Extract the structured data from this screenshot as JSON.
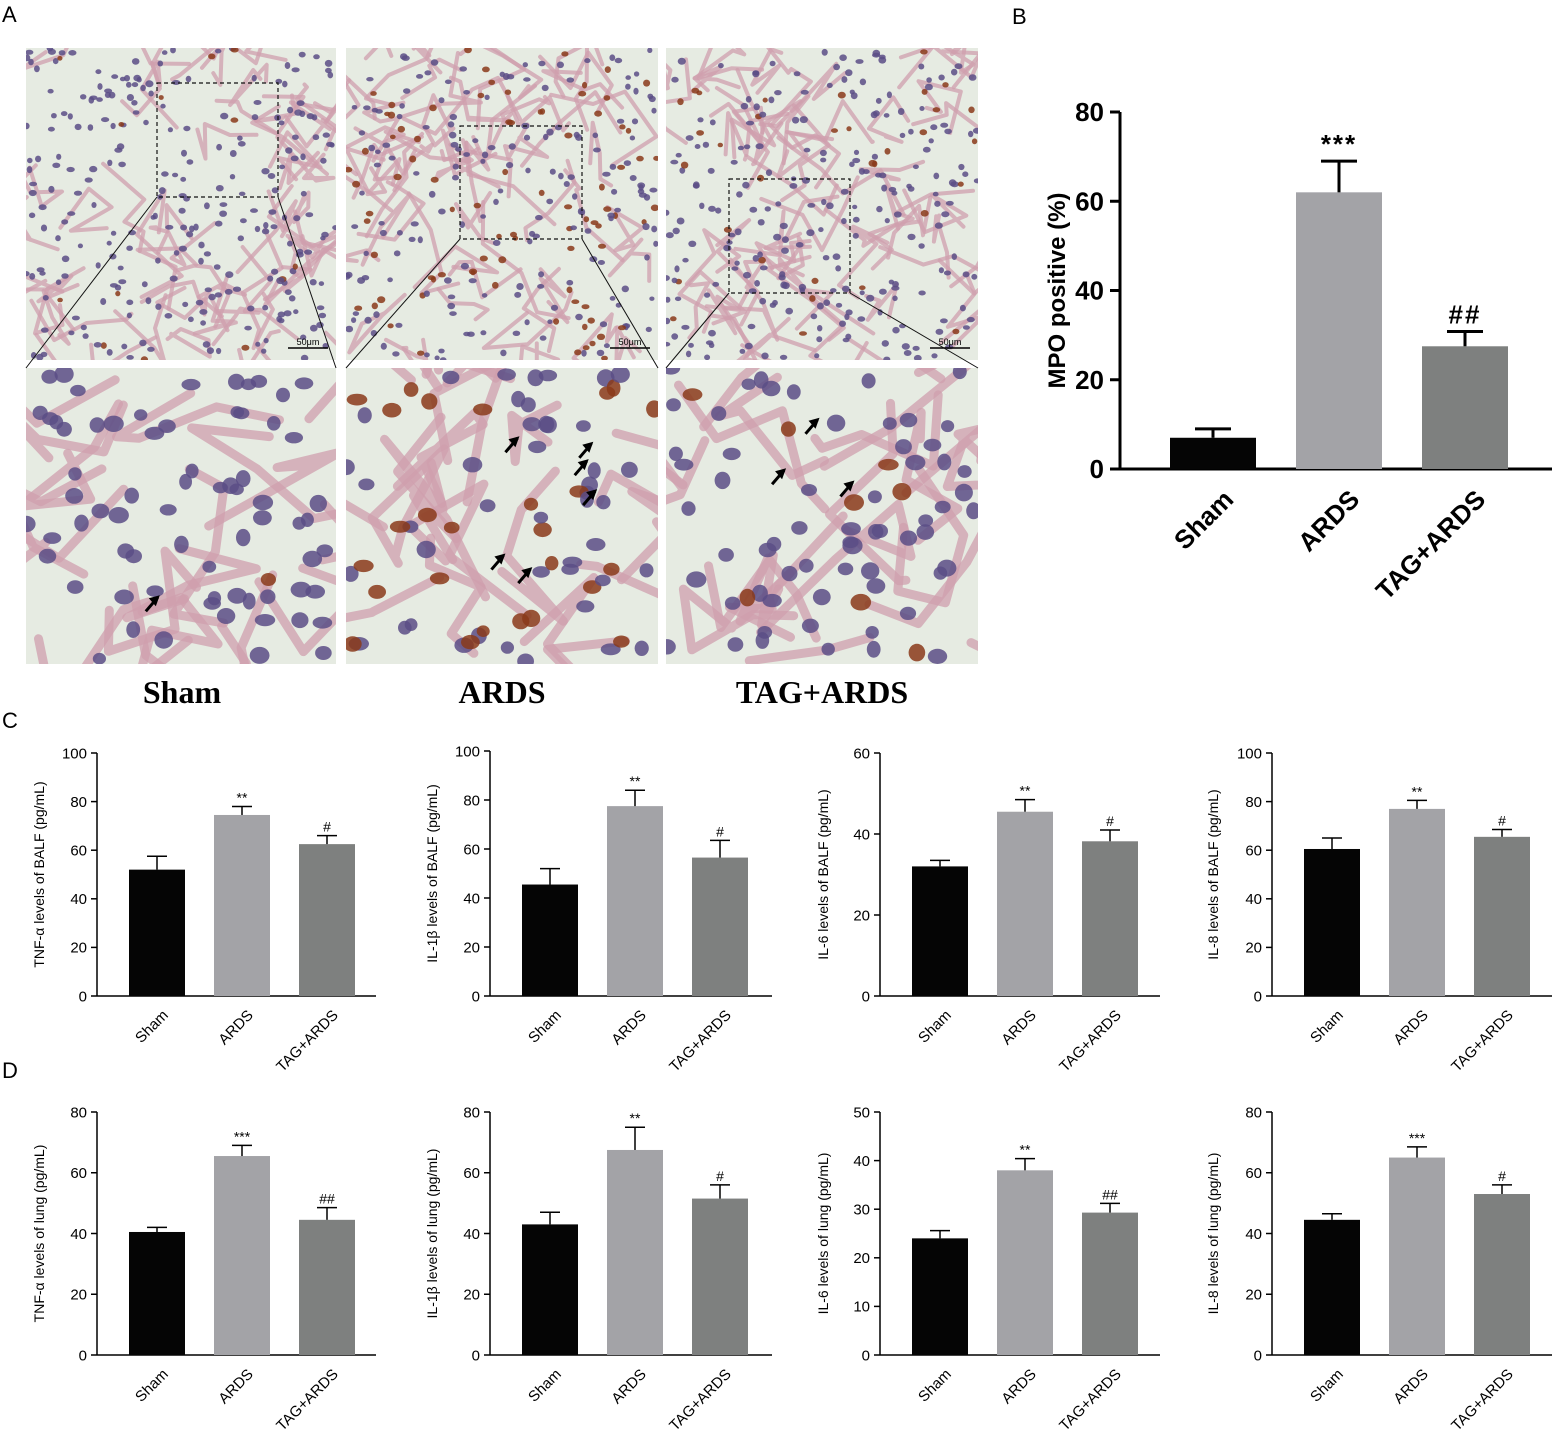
{
  "panel_letters": {
    "A": "A",
    "B": "B",
    "C": "C",
    "D": "D"
  },
  "micrographs": {
    "scale_bar": "50μm",
    "groups": [
      "Sham",
      "ARDS",
      "TAG+ARDS"
    ],
    "arrow_counts": [
      1,
      6,
      3
    ]
  },
  "colors": {
    "sham": "#050505",
    "ards": "#a3a3a7",
    "tag_ards": "#7e807f",
    "tissue_bg": "#e6ebe2",
    "tissue_pink": "#cf9fae",
    "nucleus": "#5b4d86",
    "mpo_positive": "#8a3a1a"
  },
  "chart_data": [
    {
      "id": "B",
      "type": "bar",
      "categories": [
        "Sham",
        "ARDS",
        "TAG+ARDS"
      ],
      "values": [
        7,
        62,
        27.5
      ],
      "errors": [
        2,
        7,
        3.3
      ],
      "annotations": [
        "",
        "***",
        "##"
      ],
      "ylabel": "MPO positive (%)",
      "ylim": [
        0,
        80
      ],
      "ticks": [
        0,
        20,
        40,
        60,
        80
      ]
    },
    {
      "id": "C1",
      "type": "bar",
      "categories": [
        "Sham",
        "ARDS",
        "TAG+ARDS"
      ],
      "values": [
        52,
        74.5,
        62.5
      ],
      "errors": [
        5.5,
        3.5,
        3.5
      ],
      "annotations": [
        "",
        "**",
        "#"
      ],
      "ylabel": "TNF-α levels of BALF (pg/mL)",
      "ylim": [
        0,
        100
      ],
      "ticks": [
        0,
        20,
        40,
        60,
        80,
        100
      ]
    },
    {
      "id": "C2",
      "type": "bar",
      "categories": [
        "Sham",
        "ARDS",
        "TAG+ARDS"
      ],
      "values": [
        45.5,
        77.5,
        56.5
      ],
      "errors": [
        6.5,
        6.5,
        7
      ],
      "annotations": [
        "",
        "**",
        "#"
      ],
      "ylabel": "IL-1β levels of BALF (pg/mL)",
      "ylim": [
        0,
        100
      ],
      "ticks": [
        0,
        20,
        40,
        60,
        80,
        100
      ]
    },
    {
      "id": "C3",
      "type": "bar",
      "categories": [
        "Sham",
        "ARDS",
        "TAG+ARDS"
      ],
      "values": [
        32,
        45.5,
        38.2
      ],
      "errors": [
        1.5,
        3,
        2.8
      ],
      "annotations": [
        "",
        "**",
        "#"
      ],
      "ylabel": "IL-6 levels of BALF (pg/mL)",
      "ylim": [
        0,
        60
      ],
      "ticks": [
        0,
        20,
        40,
        60
      ]
    },
    {
      "id": "C4",
      "type": "bar",
      "categories": [
        "Sham",
        "ARDS",
        "TAG+ARDS"
      ],
      "values": [
        60.5,
        77,
        65.5
      ],
      "errors": [
        4.5,
        3.5,
        3
      ],
      "annotations": [
        "",
        "**",
        "#"
      ],
      "ylabel": "IL-8 levels of BALF (pg/mL)",
      "ylim": [
        0,
        100
      ],
      "ticks": [
        0,
        20,
        40,
        60,
        80,
        100
      ]
    },
    {
      "id": "D1",
      "type": "bar",
      "categories": [
        "Sham",
        "ARDS",
        "TAG+ARDS"
      ],
      "values": [
        40.5,
        65.5,
        44.5
      ],
      "errors": [
        1.5,
        3.5,
        4
      ],
      "annotations": [
        "",
        "***",
        "##"
      ],
      "ylabel": "TNF-α levels of lung (pg/mL)",
      "ylim": [
        0,
        80
      ],
      "ticks": [
        0,
        20,
        40,
        60,
        80
      ]
    },
    {
      "id": "D2",
      "type": "bar",
      "categories": [
        "Sham",
        "ARDS",
        "TAG+ARDS"
      ],
      "values": [
        43,
        67.5,
        51.5
      ],
      "errors": [
        4,
        7.5,
        4.5
      ],
      "annotations": [
        "",
        "**",
        "#"
      ],
      "ylabel": "IL-1β levels of lung (pg/mL)",
      "ylim": [
        0,
        80
      ],
      "ticks": [
        0,
        20,
        40,
        60,
        80
      ]
    },
    {
      "id": "D3",
      "type": "bar",
      "categories": [
        "Sham",
        "ARDS",
        "TAG+ARDS"
      ],
      "values": [
        24,
        38,
        29.3
      ],
      "errors": [
        1.6,
        2.4,
        1.9
      ],
      "annotations": [
        "",
        "**",
        "##"
      ],
      "ylabel": "IL-6 levels of lung (pg/mL)",
      "ylim": [
        0,
        50
      ],
      "ticks": [
        0,
        10,
        20,
        30,
        40,
        50
      ]
    },
    {
      "id": "D4",
      "type": "bar",
      "categories": [
        "Sham",
        "ARDS",
        "TAG+ARDS"
      ],
      "values": [
        44.5,
        65,
        53
      ],
      "errors": [
        2,
        3.5,
        3
      ],
      "annotations": [
        "",
        "***",
        "#"
      ],
      "ylabel": "IL-8 levels of lung (pg/mL)",
      "ylim": [
        0,
        80
      ],
      "ticks": [
        0,
        20,
        40,
        60,
        80
      ]
    }
  ]
}
